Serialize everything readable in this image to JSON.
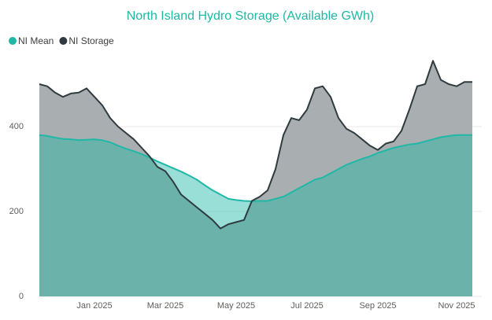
{
  "chart_data": {
    "type": "area",
    "title": "North Island Hydro Storage (Available GWh)",
    "categories": [
      null,
      null,
      null,
      null,
      null,
      null,
      null,
      "Jan 2025",
      null,
      null,
      null,
      null,
      null,
      null,
      null,
      null,
      "Mar 2025",
      null,
      null,
      null,
      null,
      null,
      null,
      null,
      null,
      "May 2025",
      null,
      null,
      null,
      null,
      null,
      null,
      null,
      null,
      "Jul 2025",
      null,
      null,
      null,
      null,
      null,
      null,
      null,
      null,
      "Sep 2025",
      null,
      null,
      null,
      null,
      null,
      null,
      null,
      null,
      null,
      "Nov 2025",
      null,
      null
    ],
    "series": [
      {
        "name": "NI Mean",
        "color": "#1fb8a6",
        "values": [
          380,
          378,
          374,
          371,
          370,
          368,
          369,
          370,
          368,
          363,
          355,
          348,
          342,
          335,
          327,
          318,
          310,
          302,
          294,
          285,
          275,
          262,
          250,
          240,
          230,
          227,
          225,
          224,
          225,
          225,
          230,
          235,
          245,
          255,
          265,
          275,
          280,
          290,
          300,
          310,
          317,
          324,
          330,
          338,
          344,
          350,
          354,
          358,
          360,
          365,
          370,
          375,
          378,
          380,
          380,
          380
        ]
      },
      {
        "name": "NI Storage",
        "color": "#2f3b3f",
        "values": [
          500,
          495,
          480,
          470,
          478,
          480,
          490,
          470,
          450,
          420,
          400,
          385,
          370,
          350,
          330,
          305,
          295,
          270,
          240,
          225,
          210,
          195,
          180,
          160,
          170,
          175,
          180,
          225,
          235,
          250,
          300,
          380,
          420,
          415,
          440,
          490,
          495,
          470,
          420,
          395,
          385,
          370,
          355,
          345,
          360,
          365,
          390,
          440,
          495,
          500,
          555,
          510,
          500,
          495,
          505,
          505
        ]
      }
    ],
    "ylim": [
      0,
      600
    ],
    "yticks": [
      0,
      200,
      400
    ],
    "grid": true,
    "legend": "top-left"
  }
}
